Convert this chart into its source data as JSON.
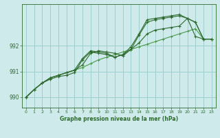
{
  "title": "Graphe pression niveau de la mer (hPa)",
  "bg_color": "#ceeaea",
  "grid_color": "#9ecece",
  "line_color": "#2d6a2d",
  "line_color_light": "#4a9a4a",
  "xlim": [
    -0.5,
    23.5
  ],
  "ylim": [
    989.6,
    993.6
  ],
  "yticks": [
    990,
    991,
    992
  ],
  "xticks": [
    0,
    1,
    2,
    3,
    4,
    5,
    6,
    7,
    8,
    9,
    10,
    11,
    12,
    13,
    14,
    15,
    16,
    17,
    18,
    19,
    20,
    21,
    22,
    23
  ],
  "series": [
    [
      990.0,
      990.3,
      990.55,
      990.7,
      990.8,
      990.85,
      990.95,
      991.45,
      991.75,
      991.7,
      991.65,
      991.55,
      991.65,
      991.85,
      992.1,
      992.45,
      992.6,
      992.65,
      992.7,
      992.75,
      993.05,
      992.35,
      992.25,
      992.25
    ],
    [
      990.0,
      990.3,
      990.55,
      990.75,
      990.85,
      990.95,
      991.05,
      991.25,
      991.7,
      991.8,
      991.75,
      991.7,
      991.6,
      991.85,
      992.4,
      992.9,
      993.0,
      993.05,
      993.1,
      993.15,
      993.05,
      992.9,
      992.25,
      992.25
    ],
    [
      990.0,
      990.3,
      990.55,
      990.75,
      990.85,
      990.95,
      991.05,
      991.5,
      991.8,
      991.75,
      991.7,
      991.55,
      991.65,
      991.95,
      992.45,
      993.0,
      993.05,
      993.1,
      993.15,
      993.2,
      993.05,
      992.9,
      992.25,
      992.25
    ],
    [
      990.0,
      990.3,
      990.55,
      990.75,
      990.85,
      990.95,
      991.05,
      991.15,
      991.3,
      991.45,
      991.55,
      991.65,
      991.75,
      991.85,
      991.95,
      992.05,
      992.15,
      992.25,
      992.35,
      992.45,
      992.55,
      992.65,
      992.25,
      992.25
    ]
  ]
}
